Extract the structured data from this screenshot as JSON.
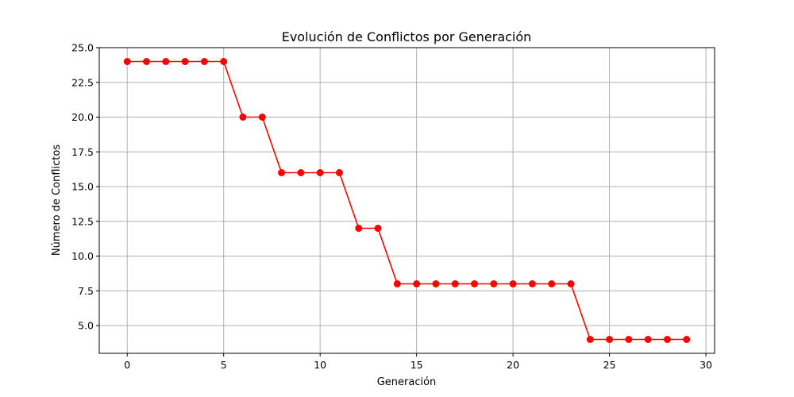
{
  "chart_data": {
    "type": "line",
    "title": "Evolución de Conflictos por Generación",
    "xlabel": "Generación",
    "ylabel": "Número de Conflictos",
    "xlim": [
      -1.45,
      30.45
    ],
    "ylim": [
      3.0,
      25.0
    ],
    "xticks": [
      0,
      5,
      10,
      15,
      20,
      25,
      30
    ],
    "xtick_labels": [
      "0",
      "5",
      "10",
      "15",
      "20",
      "25",
      "30"
    ],
    "yticks": [
      5.0,
      7.5,
      10.0,
      12.5,
      15.0,
      17.5,
      20.0,
      22.5,
      25.0
    ],
    "ytick_labels": [
      "5.0",
      "7.5",
      "10.0",
      "12.5",
      "15.0",
      "17.5",
      "20.0",
      "22.5",
      "25.0"
    ],
    "grid": true,
    "series": [
      {
        "name": "Conflictos",
        "color": "#ff0000",
        "marker": "circle",
        "x": [
          0,
          1,
          2,
          3,
          4,
          5,
          6,
          7,
          8,
          9,
          10,
          11,
          12,
          13,
          14,
          15,
          16,
          17,
          18,
          19,
          20,
          21,
          22,
          23,
          24,
          25,
          26,
          27,
          28,
          29
        ],
        "values": [
          24,
          24,
          24,
          24,
          24,
          24,
          20,
          20,
          16,
          16,
          16,
          16,
          12,
          12,
          8,
          8,
          8,
          8,
          8,
          8,
          8,
          8,
          8,
          8,
          4,
          4,
          4,
          4,
          4,
          4
        ]
      }
    ]
  }
}
